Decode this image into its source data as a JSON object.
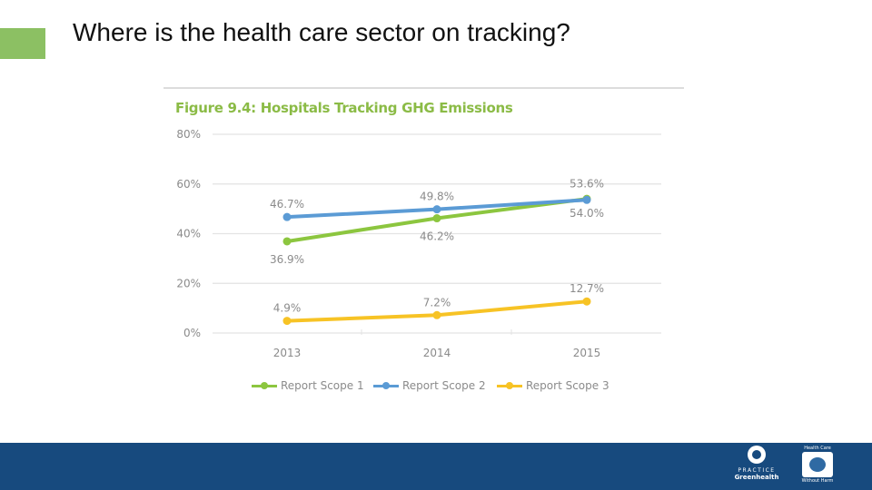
{
  "slide": {
    "title": "Where is the health care sector on tracking?",
    "accent_color": "#8cc063",
    "footer_color": "#174a7e"
  },
  "chart_data": {
    "type": "line",
    "title": "Figure 9.4: Hospitals Tracking GHG Emissions",
    "categories": [
      "2013",
      "2014",
      "2015"
    ],
    "ylim": [
      0,
      80
    ],
    "yticks": [
      0,
      20,
      40,
      60,
      80
    ],
    "ytick_labels": [
      "0%",
      "20%",
      "40%",
      "60%",
      "80%"
    ],
    "grid": true,
    "legend_position": "bottom",
    "series": [
      {
        "name": "Report Scope 1",
        "color": "#8cc63f",
        "values": [
          36.9,
          46.2,
          54.0
        ],
        "labels": [
          "36.9%",
          "46.2%",
          "54.0%"
        ],
        "label_side": [
          "below",
          "below",
          "below"
        ]
      },
      {
        "name": "Report Scope 2",
        "color": "#5b9bd5",
        "values": [
          46.7,
          49.8,
          53.6
        ],
        "labels": [
          "46.7%",
          "49.8%",
          "53.6%"
        ],
        "label_side": [
          "above",
          "above",
          "above"
        ]
      },
      {
        "name": "Report Scope 3",
        "color": "#f7c325",
        "values": [
          4.9,
          7.2,
          12.7
        ],
        "labels": [
          "4.9%",
          "7.2%",
          "12.7%"
        ],
        "label_side": [
          "above",
          "above",
          "above"
        ]
      }
    ]
  },
  "logos": {
    "practice_greenhealth": {
      "line1": "PRACTICE",
      "line2": "Greenhealth"
    },
    "hcwh": {
      "line1": "Health Care",
      "line2": "Without Harm"
    }
  }
}
